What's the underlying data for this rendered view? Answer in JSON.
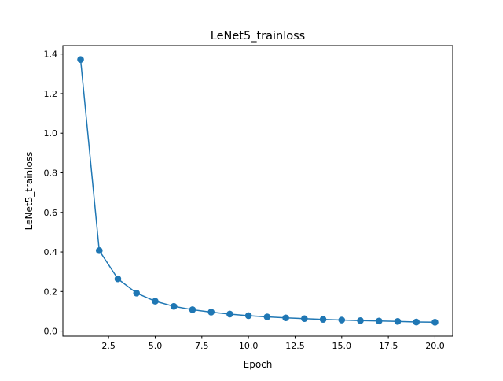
{
  "chart_data": {
    "type": "line",
    "title": "LeNet5_trainloss",
    "xlabel": "Epoch",
    "ylabel": "LeNet5_trainloss",
    "xlim": [
      0.05,
      20.95
    ],
    "ylim": [
      -0.0255,
      1.4425
    ],
    "xticks": [
      2.5,
      5.0,
      7.5,
      10.0,
      12.5,
      15.0,
      17.5,
      20.0
    ],
    "xtick_labels": [
      "2.5",
      "5.0",
      "7.5",
      "10.0",
      "12.5",
      "15.0",
      "17.5",
      "20.0"
    ],
    "yticks": [
      0.0,
      0.2,
      0.4,
      0.6,
      0.8,
      1.0,
      1.2,
      1.4
    ],
    "ytick_labels": [
      "0.0",
      "0.2",
      "0.4",
      "0.6",
      "0.8",
      "1.0",
      "1.2",
      "1.4"
    ],
    "grid": false,
    "legend": "none",
    "series": [
      {
        "color": "#1f77b4",
        "marker": "circle",
        "x": [
          1,
          2,
          3,
          4,
          5,
          6,
          7,
          8,
          9,
          10,
          11,
          12,
          13,
          14,
          15,
          16,
          17,
          18,
          19,
          20
        ],
        "y": [
          1.372,
          0.407,
          0.264,
          0.192,
          0.151,
          0.125,
          0.108,
          0.096,
          0.086,
          0.078,
          0.072,
          0.067,
          0.063,
          0.059,
          0.056,
          0.053,
          0.051,
          0.049,
          0.046,
          0.045
        ]
      }
    ]
  }
}
